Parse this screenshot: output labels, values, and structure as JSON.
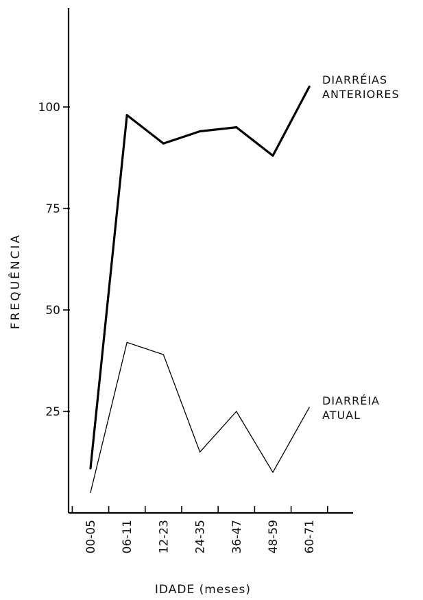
{
  "chart_data": {
    "type": "line",
    "xlabel": "IDADE (meses)",
    "ylabel": "FREQUÊNCIA",
    "categories": [
      "00-05",
      "06-11",
      "12-23",
      "24-35",
      "36-47",
      "48-59",
      "60-71"
    ],
    "yticks": [
      "25",
      "50",
      "75",
      "100"
    ],
    "ylim": [
      0,
      125
    ],
    "grid": false,
    "series": [
      {
        "name": "DIARRÉIAS ANTERIORES",
        "values": [
          11,
          98,
          91,
          94,
          95,
          88,
          105
        ],
        "color": "#000000",
        "style": "thick"
      },
      {
        "name": "DIARRÉIA ATUAL",
        "values": [
          5,
          42,
          39,
          15,
          25,
          10,
          26
        ],
        "color": "#000000",
        "style": "thin"
      }
    ]
  }
}
